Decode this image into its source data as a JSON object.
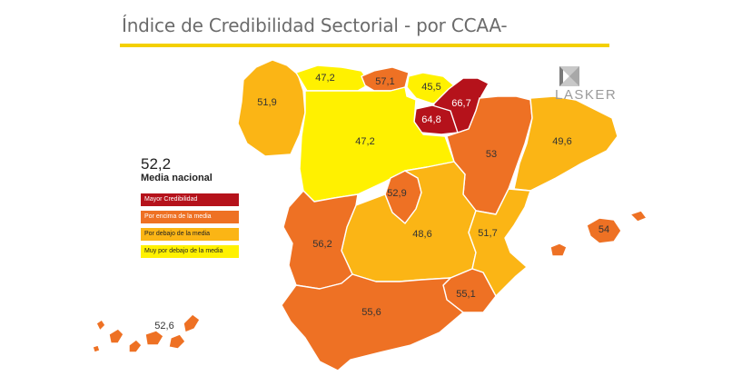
{
  "title": "Índice de Credibilidad Sectorial - por CCAA-",
  "logo": {
    "text": "LASKER"
  },
  "legend": {
    "national_value": "52,2",
    "national_label": "Media nacional",
    "items": [
      {
        "label": "Mayor Credibilidad",
        "color": "#b5121b",
        "text_color": "#ffffff"
      },
      {
        "label": "Por encima de la media",
        "color": "#ee7124",
        "text_color": "#ffffff"
      },
      {
        "label": "Por debajo de la media",
        "color": "#fbb515",
        "text_color": "#222222"
      },
      {
        "label": "Muy por debajo de la media",
        "color": "#fff100",
        "text_color": "#222222"
      }
    ]
  },
  "regions": [
    {
      "id": "galicia",
      "value": "51,9",
      "category": "Por debajo de la media",
      "color": "#fbb515"
    },
    {
      "id": "asturias",
      "value": "47,2",
      "category": "Muy por debajo de la media",
      "color": "#fff100"
    },
    {
      "id": "cantabria",
      "value": "57,1",
      "category": "Por encima de la media",
      "color": "#ee7124"
    },
    {
      "id": "pais-vasco",
      "value": "45,5",
      "category": "Muy por debajo de la media",
      "color": "#fff100"
    },
    {
      "id": "navarra",
      "value": "66,7",
      "category": "Mayor Credibilidad",
      "color": "#b5121b"
    },
    {
      "id": "la-rioja",
      "value": "64,8",
      "category": "Mayor Credibilidad",
      "color": "#b5121b"
    },
    {
      "id": "castilla-y-leon",
      "value": "47,2",
      "category": "Muy por debajo de la media",
      "color": "#fff100"
    },
    {
      "id": "aragon",
      "value": "53",
      "category": "Por encima de la media",
      "color": "#ee7124"
    },
    {
      "id": "cataluna",
      "value": "49,6",
      "category": "Por debajo de la media",
      "color": "#fbb515"
    },
    {
      "id": "madrid",
      "value": "52,9",
      "category": "Por encima de la media",
      "color": "#ee7124"
    },
    {
      "id": "castilla-la-mancha",
      "value": "48,6",
      "category": "Por debajo de la media",
      "color": "#fbb515"
    },
    {
      "id": "comunidad-valenciana",
      "value": "51,7",
      "category": "Por debajo de la media",
      "color": "#fbb515"
    },
    {
      "id": "extremadura",
      "value": "56,2",
      "category": "Por encima de la media",
      "color": "#ee7124"
    },
    {
      "id": "baleares",
      "value": "54",
      "category": "Por encima de la media",
      "color": "#ee7124"
    },
    {
      "id": "murcia",
      "value": "55,1",
      "category": "Por encima de la media",
      "color": "#ee7124"
    },
    {
      "id": "andalucia",
      "value": "55,6",
      "category": "Por encima de la media",
      "color": "#ee7124"
    },
    {
      "id": "canarias",
      "value": "52,6",
      "category": "Por encima de la media",
      "color": "#ee7124"
    }
  ]
}
